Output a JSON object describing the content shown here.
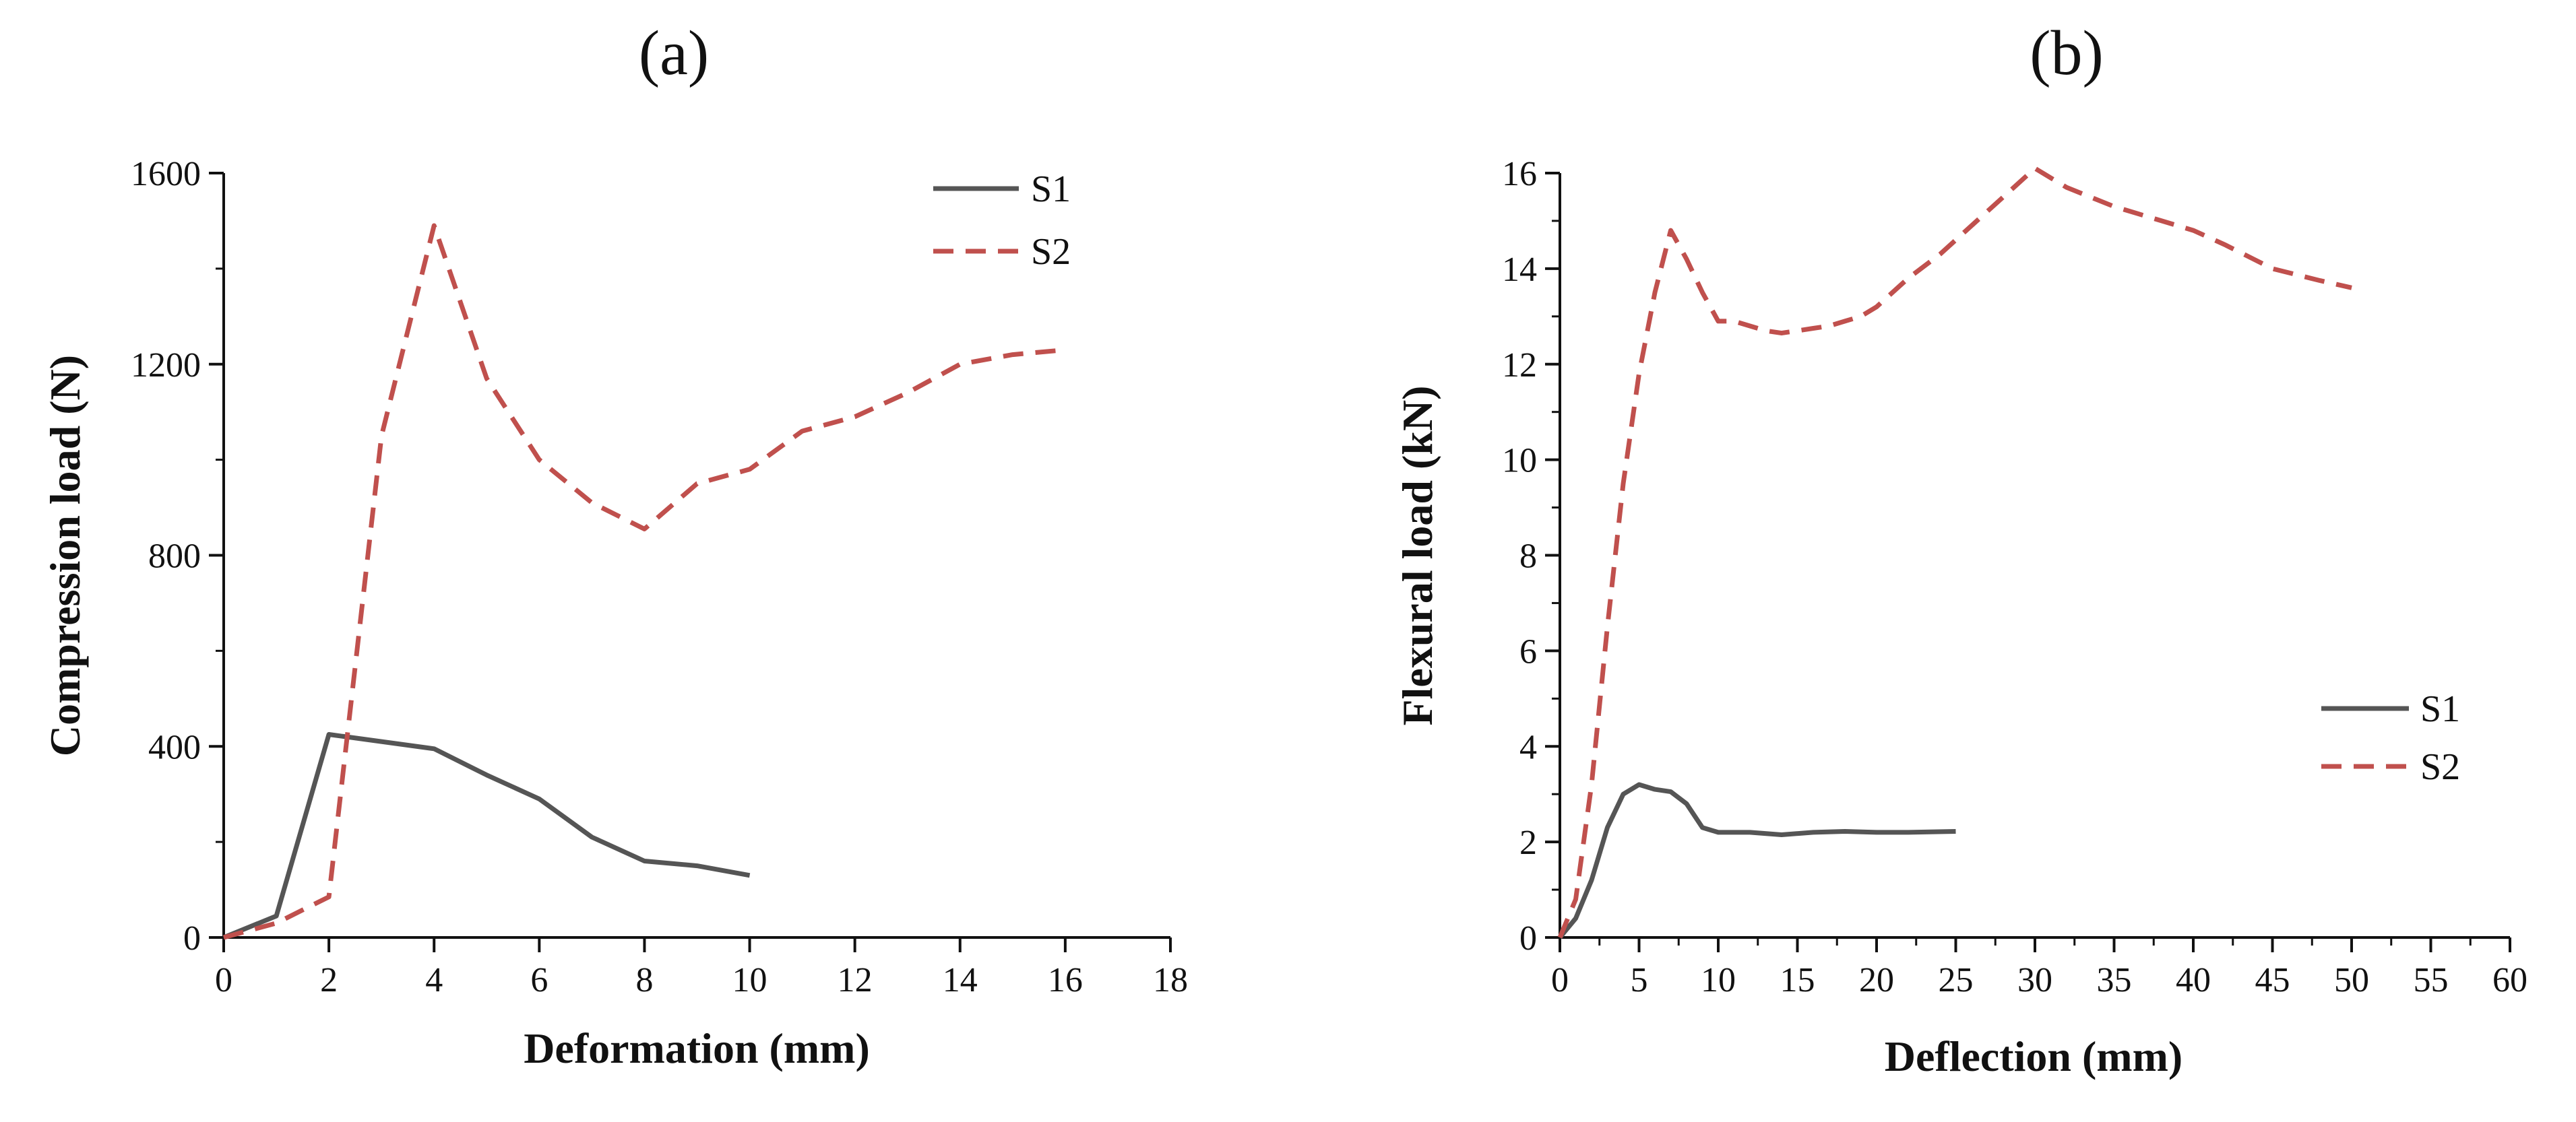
{
  "chart_data": [
    {
      "type": "line",
      "title": "(a)",
      "xlabel": "Deformation (mm)",
      "ylabel": "Compression load (N)",
      "xlim": [
        0,
        18
      ],
      "ylim": [
        0,
        1600
      ],
      "xticks": [
        0,
        2,
        4,
        6,
        8,
        10,
        12,
        14,
        16,
        18
      ],
      "yticks": [
        0,
        400,
        800,
        1200,
        1600
      ],
      "legend": "top-right",
      "series": [
        {
          "name": "S1",
          "style": "solid",
          "color": "#555555",
          "x": [
            0,
            1,
            2,
            4,
            5,
            6,
            7,
            8,
            9,
            10
          ],
          "y": [
            0,
            45,
            425,
            395,
            340,
            290,
            210,
            160,
            150,
            130
          ]
        },
        {
          "name": "S2",
          "style": "dashed",
          "color": "#c0504d",
          "x": [
            0,
            1,
            2,
            3,
            4,
            5,
            6,
            7,
            8,
            9,
            10,
            11,
            12,
            13,
            14,
            15,
            16
          ],
          "y": [
            0,
            30,
            85,
            1050,
            1490,
            1170,
            1000,
            910,
            855,
            950,
            980,
            1060,
            1090,
            1140,
            1200,
            1220,
            1230
          ]
        }
      ]
    },
    {
      "type": "line",
      "title": "(b)",
      "xlabel": "Deflection (mm)",
      "ylabel": "Flexural load (kN)",
      "xlim": [
        0,
        60
      ],
      "ylim": [
        0,
        16
      ],
      "xticks": [
        0,
        5,
        10,
        15,
        20,
        25,
        30,
        35,
        40,
        45,
        50,
        55,
        60
      ],
      "yticks": [
        0,
        2,
        4,
        6,
        8,
        10,
        12,
        14,
        16
      ],
      "legend": "right",
      "series": [
        {
          "name": "S1",
          "style": "solid",
          "color": "#555555",
          "x": [
            0,
            1,
            2,
            3,
            4,
            5,
            6,
            7,
            8,
            9,
            10,
            12,
            14,
            16,
            18,
            20,
            22,
            25
          ],
          "y": [
            0,
            0.4,
            1.2,
            2.3,
            3.0,
            3.2,
            3.1,
            3.05,
            2.8,
            2.3,
            2.2,
            2.2,
            2.15,
            2.2,
            2.22,
            2.2,
            2.2,
            2.22
          ]
        },
        {
          "name": "S2",
          "style": "dashed",
          "color": "#c0504d",
          "x": [
            0,
            1,
            2,
            3,
            4,
            5,
            6,
            7,
            8,
            9,
            10,
            11,
            12,
            13,
            14,
            15,
            16,
            17,
            18,
            19,
            20,
            22,
            24,
            26,
            28,
            30,
            32,
            35,
            38,
            40,
            42,
            45,
            48,
            50
          ],
          "y": [
            0,
            0.8,
            3.2,
            6.5,
            9.5,
            11.8,
            13.5,
            14.8,
            14.2,
            13.5,
            12.9,
            12.9,
            12.8,
            12.7,
            12.65,
            12.7,
            12.75,
            12.8,
            12.9,
            13.0,
            13.2,
            13.8,
            14.3,
            14.9,
            15.5,
            16.1,
            15.7,
            15.3,
            15.0,
            14.8,
            14.5,
            14.0,
            13.75,
            13.6
          ]
        }
      ]
    }
  ]
}
